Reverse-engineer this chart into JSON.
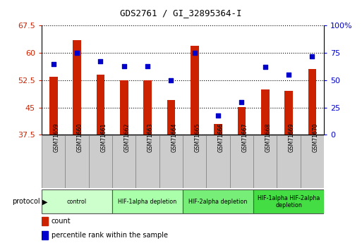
{
  "title": "GDS2761 / GI_32895364-I",
  "samples": [
    "GSM71659",
    "GSM71660",
    "GSM71661",
    "GSM71662",
    "GSM71663",
    "GSM71664",
    "GSM71665",
    "GSM71666",
    "GSM71667",
    "GSM71668",
    "GSM71669",
    "GSM71670"
  ],
  "counts": [
    53.5,
    63.5,
    54.0,
    52.5,
    52.5,
    47.0,
    62.0,
    40.5,
    45.2,
    50.0,
    49.5,
    55.5
  ],
  "percentile_ranks": [
    65,
    75,
    67,
    63,
    63,
    50,
    75,
    18,
    30,
    62,
    55,
    72
  ],
  "ylim_left": [
    37.5,
    67.5
  ],
  "ylim_right": [
    0,
    100
  ],
  "yticks_left": [
    37.5,
    45.0,
    52.5,
    60.0,
    67.5
  ],
  "ytick_labels_left": [
    "37.5",
    "45",
    "52.5",
    "60",
    "67.5"
  ],
  "yticks_right": [
    0,
    25,
    50,
    75,
    100
  ],
  "ytick_labels_right": [
    "0",
    "25",
    "50",
    "75",
    "100%"
  ],
  "bar_color": "#cc2200",
  "dot_color": "#0000cc",
  "bar_width": 0.35,
  "xlabel_left_color": "#cc2200",
  "xlabel_right_color": "#0000cc",
  "tick_bg": "#cccccc",
  "protocol_groups": [
    {
      "label": "control",
      "indices": [
        0,
        1,
        2
      ],
      "color": "#ccffcc"
    },
    {
      "label": "HIF-1alpha depletion",
      "indices": [
        3,
        4,
        5
      ],
      "color": "#aaffaa"
    },
    {
      "label": "HIF-2alpha depletion",
      "indices": [
        6,
        7,
        8
      ],
      "color": "#77ee77"
    },
    {
      "label": "HIF-1alpha HIF-2alpha\ndepletion",
      "indices": [
        9,
        10,
        11
      ],
      "color": "#44dd44"
    }
  ]
}
